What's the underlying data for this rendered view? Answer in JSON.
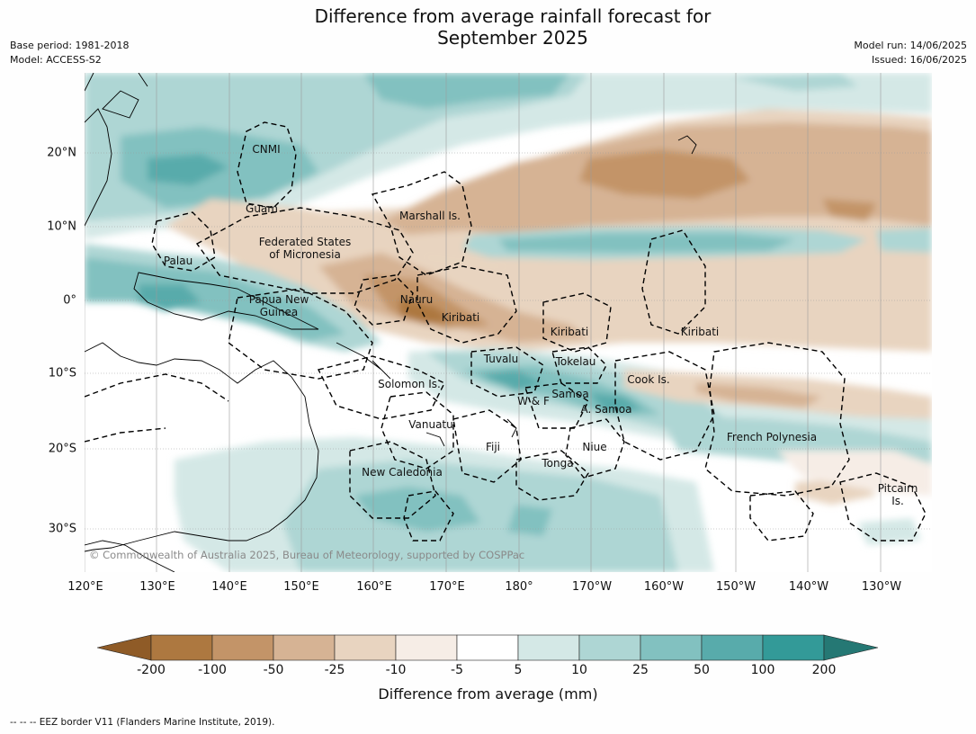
{
  "title_line1": "Difference from average rainfall forecast for",
  "title_line2": "September 2025",
  "base_period": "Base period: 1981-2018",
  "model": "Model: ACCESS-S2",
  "model_run": "Model run: 14/06/2025",
  "issued": "Issued: 16/06/2025",
  "lat_labels": [
    "20°N",
    "10°N",
    "0°",
    "10°S",
    "20°S",
    "30°S"
  ],
  "lon_labels": [
    "120°E",
    "130°E",
    "140°E",
    "150°E",
    "160°E",
    "170°E",
    "180°",
    "170°W",
    "160°W",
    "150°W",
    "140°W",
    "130°W"
  ],
  "places": [
    "CNMI",
    "Guam",
    "Marshall Is.",
    "Federated States",
    "of Micronesia",
    "Palau",
    "Papua New",
    "Guinea",
    "Nauru",
    "Kiribati",
    "Kiribati",
    "Kiribati",
    "Tuvalu",
    "Tokelau",
    "Solomon Is.",
    "Cook Is.",
    "Samoa",
    "W & F",
    "A. Samoa",
    "Vanuatu",
    "Fiji",
    "Niue",
    "Tonga",
    "French Polynesia",
    "New Caledonia",
    "Pitcairn",
    "Is."
  ],
  "copyright": "© Commonwealth of Australia 2025, Bureau of Meteorology, supported by COSPPac",
  "colorbar": {
    "title": "Difference from average (mm)",
    "labels": [
      "-200",
      "-100",
      "-50",
      "-25",
      "-10",
      "-5",
      "5",
      "10",
      "25",
      "50",
      "100",
      "200"
    ],
    "colors": [
      "#8f5b27",
      "#ad7840",
      "#c39468",
      "#d6b394",
      "#e8d4c0",
      "#f6ede6",
      "#ffffff",
      "#d4e8e6",
      "#aed6d4",
      "#82c1c0",
      "#58abab",
      "#339a98",
      "#257874"
    ]
  },
  "footer": "--  --  -- EEZ border V11 (Flanders Marine Institute, 2019)."
}
